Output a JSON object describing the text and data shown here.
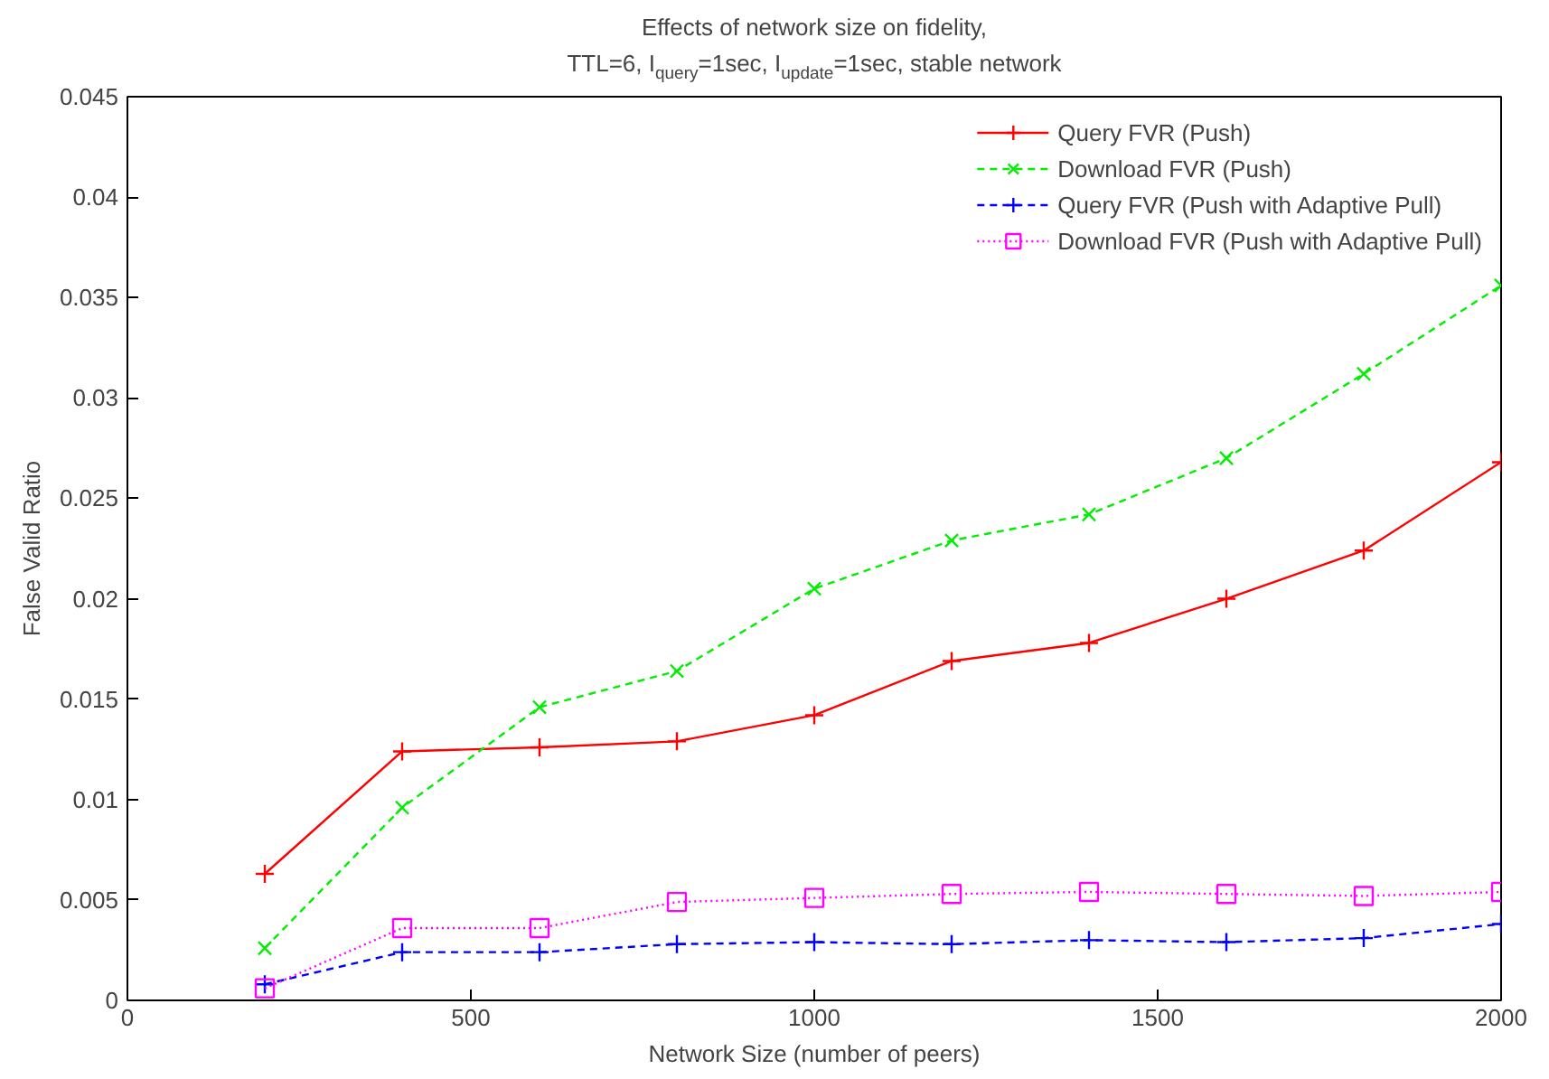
{
  "chart_data": {
    "type": "line",
    "title": "Effects of network size on fidelity,",
    "subtitle": "TTL=6, I$_{query}$=1sec, I$_{update}$=1sec, stable network",
    "xlabel": "Network Size (number of peers)",
    "ylabel": "False Valid Ratio",
    "x": [
      200,
      400,
      600,
      800,
      1000,
      1200,
      1400,
      1600,
      1800,
      2000
    ],
    "series": [
      {
        "name": "Query FVR (Push)",
        "color": "#ff0000",
        "marker": "cross",
        "line_style": "solid",
        "values": [
          0.0063,
          0.0124,
          0.0126,
          0.0129,
          0.0142,
          0.0169,
          0.0178,
          0.02,
          0.0224,
          0.0268
        ]
      },
      {
        "name": "Download FVR (Push)",
        "color": "#00ee00",
        "marker": "x",
        "line_style": "dashed",
        "values": [
          0.0026,
          0.0096,
          0.0146,
          0.0164,
          0.0205,
          0.0229,
          0.0242,
          0.027,
          0.0312,
          0.0356
        ]
      },
      {
        "name": "Query FVR (Push with Adaptive Pull)",
        "color": "#0000ff",
        "marker": "cross",
        "line_style": "dashed",
        "values": [
          0.0008,
          0.0024,
          0.0024,
          0.0028,
          0.0029,
          0.0028,
          0.003,
          0.0029,
          0.0031,
          0.0038
        ]
      },
      {
        "name": "Download FVR (Push with Adaptive Pull)",
        "color": "#ff00ff",
        "marker": "square",
        "line_style": "dotted",
        "values": [
          0.0006,
          0.0036,
          0.0036,
          0.0049,
          0.0051,
          0.0053,
          0.0054,
          0.0053,
          0.0052,
          0.0054
        ]
      }
    ],
    "xlim": [
      0,
      2000
    ],
    "xticks": [
      0,
      500,
      1000,
      1500,
      2000
    ],
    "ylim": [
      0,
      0.045
    ],
    "yticks": [
      0,
      0.005,
      0.01,
      0.015,
      0.02,
      0.025,
      0.03,
      0.035,
      0.04,
      0.045
    ],
    "grid": false,
    "legend": "top right"
  }
}
